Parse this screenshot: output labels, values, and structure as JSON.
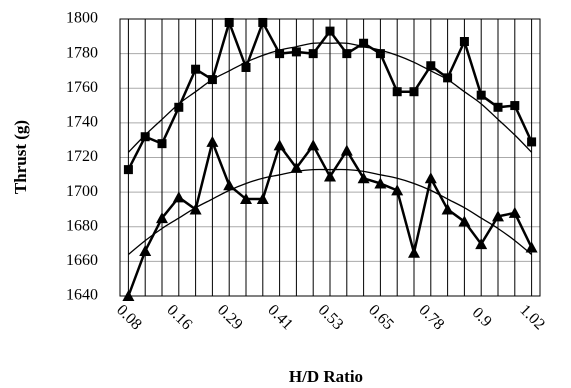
{
  "chart_data": {
    "type": "line",
    "y_label": "Thrust (g)",
    "x_label": "H/D Ratio",
    "categories": [
      "0.08",
      null,
      null,
      "0.16",
      null,
      null,
      "0.29",
      null,
      null,
      "0.41",
      null,
      null,
      "0.53",
      null,
      null,
      "0.65",
      null,
      null,
      "0.78",
      null,
      null,
      "0.9",
      null,
      null,
      "1.02"
    ],
    "series": [
      {
        "color": "#000000",
        "marker": "square",
        "values": [
          1713,
          1732,
          1728,
          1749,
          1771,
          1765,
          1798,
          1772,
          1798,
          1780,
          1781,
          1780,
          1793,
          1780,
          1786,
          1780,
          1758,
          1758,
          1773,
          1766,
          1787,
          1756,
          1749,
          1750,
          1729
        ]
      },
      {
        "color": "#000000",
        "marker": "triangle",
        "values": [
          1640,
          1666,
          1685,
          1697,
          1690,
          1729,
          1704,
          1696,
          1696,
          1727,
          1714,
          1727,
          1709,
          1724,
          1708,
          1705,
          1701,
          1665,
          1708,
          1690,
          1683,
          1670,
          1686,
          1688,
          1668
        ]
      },
      {
        "color": "#000000",
        "marker": "none",
        "values": [
          1723,
          1733,
          1742,
          1751,
          1758,
          1765,
          1770,
          1775,
          1779,
          1782,
          1784,
          1786,
          1786,
          1786,
          1784,
          1782,
          1779,
          1775,
          1770,
          1765,
          1758,
          1751,
          1742,
          1733,
          1723
        ]
      },
      {
        "color": "#000000",
        "marker": "none",
        "values": [
          1664,
          1672,
          1679,
          1685,
          1691,
          1696,
          1701,
          1705,
          1708,
          1710,
          1712,
          1713,
          1713,
          1713,
          1712,
          1710,
          1708,
          1705,
          1701,
          1696,
          1691,
          1685,
          1679,
          1672,
          1664
        ]
      }
    ],
    "ylim": [
      1640,
      1800
    ],
    "yticks": [
      1640,
      1660,
      1680,
      1700,
      1720,
      1740,
      1760,
      1780,
      1800
    ],
    "grid": true
  }
}
